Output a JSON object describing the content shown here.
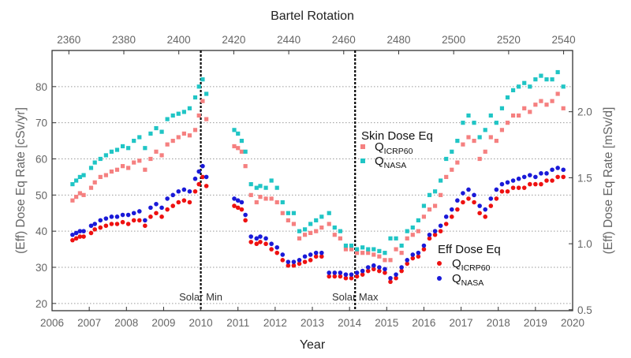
{
  "chart_data": {
    "type": "scatter",
    "title": "",
    "xlabel": "Year",
    "x2label": "Bartel Rotation",
    "ylabel": "(Eff) Dose Eq Rate [cSv/yr]",
    "y2label": "(Eff) Dose Eq Rate [mSv/d]",
    "xlim": [
      2006,
      2020
    ],
    "ylim": [
      18,
      90
    ],
    "x_ticks": [
      "2006",
      "2007",
      "2008",
      "2009",
      "2010",
      "2011",
      "2012",
      "2013",
      "2014",
      "2015",
      "2016",
      "2017",
      "2018",
      "2019",
      "2020"
    ],
    "y_ticks": [
      "20",
      "30",
      "40",
      "50",
      "60",
      "70",
      "80"
    ],
    "x2_ticks": [
      "2360",
      "2380",
      "2400",
      "2420",
      "2440",
      "2460",
      "2480",
      "2500",
      "2520",
      "2540"
    ],
    "y2_ticks": [
      "0.5",
      "1.0",
      "1.5",
      "2.0"
    ],
    "grid": "horizontal-dotted",
    "annotations": {
      "solar_min": {
        "label": "Solar Min",
        "x": 2010.0
      },
      "solar_max": {
        "label": "Solar Max",
        "x": 2014.15
      }
    },
    "legend_skin": {
      "title": "Skin Dose Eq",
      "items": [
        {
          "q": "Q",
          "sub": "ICRP60",
          "color": "#f58080"
        },
        {
          "q": "Q",
          "sub": "NASA",
          "color": "#20c5c5"
        }
      ]
    },
    "legend_eff": {
      "title": "Eff Dose Eq",
      "items": [
        {
          "q": "Q",
          "sub": "ICRP60",
          "color": "#ee1111"
        },
        {
          "q": "Q",
          "sub": "NASA",
          "color": "#1a1ad8"
        }
      ]
    },
    "series": [
      {
        "name": "Skin Dose Eq Q ICRP60",
        "color": "#f58080",
        "marker": "square",
        "x": [
          2006.55,
          2006.65,
          2006.75,
          2006.85,
          2007.05,
          2007.15,
          2007.3,
          2007.45,
          2007.6,
          2007.75,
          2007.9,
          2008.05,
          2008.2,
          2008.35,
          2008.5,
          2008.65,
          2008.8,
          2008.95,
          2009.1,
          2009.25,
          2009.4,
          2009.55,
          2009.7,
          2009.85,
          2009.95,
          2010.05,
          2010.15,
          2010.9,
          2011.0,
          2011.1,
          2011.2,
          2011.35,
          2011.5,
          2011.6,
          2011.75,
          2011.9,
          2012.05,
          2012.2,
          2012.35,
          2012.5,
          2012.65,
          2012.8,
          2012.95,
          2013.1,
          2013.25,
          2013.45,
          2013.6,
          2013.75,
          2013.9,
          2014.05,
          2014.2,
          2014.35,
          2014.5,
          2014.65,
          2014.8,
          2014.95,
          2015.1,
          2015.25,
          2015.4,
          2015.55,
          2015.7,
          2015.85,
          2016.0,
          2016.15,
          2016.3,
          2016.45,
          2016.6,
          2016.75,
          2016.9,
          2017.05,
          2017.2,
          2017.35,
          2017.5,
          2017.65,
          2017.8,
          2017.95,
          2018.1,
          2018.25,
          2018.4,
          2018.55,
          2018.7,
          2018.85,
          2019.0,
          2019.15,
          2019.3,
          2019.45,
          2019.6,
          2019.75
        ],
        "values": [
          48.5,
          49.5,
          50.5,
          50,
          52,
          53.5,
          55,
          55.5,
          56.5,
          57,
          58,
          57.5,
          59,
          59.5,
          57,
          60,
          62,
          61,
          64,
          65,
          66,
          67,
          66.5,
          68,
          72,
          76,
          71,
          63.5,
          63,
          62,
          58,
          50,
          48,
          49.5,
          49,
          49,
          48,
          45,
          43,
          42,
          38,
          39,
          39.5,
          40,
          41,
          42,
          39,
          38,
          35,
          35,
          34,
          34,
          34,
          33.5,
          33,
          32,
          32,
          35,
          34,
          38,
          39,
          40,
          44,
          46,
          47,
          50,
          55,
          57,
          59,
          64,
          66,
          65,
          60,
          62,
          66,
          65,
          68,
          70,
          72,
          72,
          74,
          73,
          75,
          76,
          75,
          76,
          78,
          74
        ]
      },
      {
        "name": "Skin Dose Eq Q NASA",
        "color": "#20c5c5",
        "marker": "square",
        "x": [
          2006.55,
          2006.65,
          2006.75,
          2006.85,
          2007.05,
          2007.15,
          2007.3,
          2007.45,
          2007.6,
          2007.75,
          2007.9,
          2008.05,
          2008.2,
          2008.35,
          2008.5,
          2008.65,
          2008.8,
          2008.95,
          2009.1,
          2009.25,
          2009.4,
          2009.55,
          2009.7,
          2009.85,
          2009.95,
          2010.05,
          2010.15,
          2010.9,
          2011.0,
          2011.1,
          2011.2,
          2011.35,
          2011.5,
          2011.6,
          2011.75,
          2011.9,
          2012.05,
          2012.2,
          2012.35,
          2012.5,
          2012.65,
          2012.8,
          2012.95,
          2013.1,
          2013.25,
          2013.45,
          2013.6,
          2013.75,
          2013.9,
          2014.05,
          2014.2,
          2014.35,
          2014.5,
          2014.65,
          2014.8,
          2014.95,
          2015.1,
          2015.25,
          2015.4,
          2015.55,
          2015.7,
          2015.85,
          2016.0,
          2016.15,
          2016.3,
          2016.45,
          2016.6,
          2016.75,
          2016.9,
          2017.05,
          2017.2,
          2017.35,
          2017.5,
          2017.65,
          2017.8,
          2017.95,
          2018.1,
          2018.25,
          2018.4,
          2018.55,
          2018.7,
          2018.85,
          2019.0,
          2019.15,
          2019.3,
          2019.45,
          2019.6,
          2019.75
        ],
        "values": [
          53,
          54,
          55,
          55.5,
          57.5,
          59,
          60,
          61,
          62,
          62.5,
          63.5,
          63,
          65,
          66,
          63,
          67,
          68.5,
          67.5,
          71,
          72,
          72.5,
          73,
          74,
          77,
          80,
          82,
          78,
          68,
          67,
          65,
          62,
          53,
          52,
          52.5,
          52,
          54,
          52,
          48,
          45,
          45,
          40,
          40.5,
          42,
          43,
          44,
          45,
          41,
          40,
          36,
          36,
          35,
          35.5,
          35,
          35,
          34.5,
          34,
          38,
          38,
          36,
          40,
          41,
          43,
          47,
          50,
          51,
          54,
          60,
          62,
          65,
          70,
          72,
          70,
          66,
          68,
          72,
          70,
          74,
          77,
          79,
          80,
          81,
          80,
          82,
          83,
          82,
          82,
          84,
          80
        ]
      },
      {
        "name": "Eff Dose Eq Q ICRP60",
        "color": "#ee1111",
        "marker": "circle",
        "x": [
          2006.55,
          2006.65,
          2006.75,
          2006.85,
          2007.05,
          2007.15,
          2007.3,
          2007.45,
          2007.6,
          2007.75,
          2007.9,
          2008.05,
          2008.2,
          2008.35,
          2008.5,
          2008.65,
          2008.8,
          2008.95,
          2009.1,
          2009.25,
          2009.4,
          2009.55,
          2009.7,
          2009.85,
          2009.95,
          2010.05,
          2010.15,
          2010.9,
          2011.0,
          2011.1,
          2011.2,
          2011.35,
          2011.5,
          2011.6,
          2011.75,
          2011.9,
          2012.05,
          2012.2,
          2012.35,
          2012.5,
          2012.65,
          2012.8,
          2012.95,
          2013.1,
          2013.25,
          2013.45,
          2013.6,
          2013.75,
          2013.9,
          2014.05,
          2014.2,
          2014.35,
          2014.5,
          2014.65,
          2014.8,
          2014.95,
          2015.1,
          2015.25,
          2015.4,
          2015.55,
          2015.7,
          2015.85,
          2016.0,
          2016.15,
          2016.3,
          2016.45,
          2016.6,
          2016.75,
          2016.9,
          2017.05,
          2017.2,
          2017.35,
          2017.5,
          2017.65,
          2017.8,
          2017.95,
          2018.1,
          2018.25,
          2018.4,
          2018.55,
          2018.7,
          2018.85,
          2019.0,
          2019.15,
          2019.3,
          2019.45,
          2019.6,
          2019.75
        ],
        "values": [
          37.5,
          38,
          38.5,
          38.5,
          39.5,
          40.5,
          41,
          41.5,
          42,
          42,
          42.5,
          42,
          43,
          43,
          41.5,
          44,
          45,
          44,
          46,
          47,
          48,
          48.5,
          48,
          51,
          53,
          55,
          52.5,
          47,
          46.5,
          46,
          43,
          37,
          36.5,
          37,
          36.5,
          35,
          34,
          32,
          30.5,
          30.5,
          31,
          31.5,
          32,
          33,
          33,
          27.5,
          27.5,
          27.5,
          27,
          27,
          27.5,
          28,
          29,
          29.5,
          29,
          28.5,
          26,
          27,
          29,
          31,
          32.5,
          33,
          35,
          38,
          39,
          40,
          42,
          44,
          46,
          48,
          49,
          48,
          45,
          44,
          47,
          49,
          51,
          51,
          52,
          52,
          52,
          53,
          53,
          53,
          54,
          54,
          55,
          55
        ]
      },
      {
        "name": "Eff Dose Eq Q NASA",
        "color": "#1a1ad8",
        "marker": "circle",
        "x": [
          2006.55,
          2006.65,
          2006.75,
          2006.85,
          2007.05,
          2007.15,
          2007.3,
          2007.45,
          2007.6,
          2007.75,
          2007.9,
          2008.05,
          2008.2,
          2008.35,
          2008.5,
          2008.65,
          2008.8,
          2008.95,
          2009.1,
          2009.25,
          2009.4,
          2009.55,
          2009.7,
          2009.85,
          2009.95,
          2010.05,
          2010.15,
          2010.9,
          2011.0,
          2011.1,
          2011.2,
          2011.35,
          2011.5,
          2011.6,
          2011.75,
          2011.9,
          2012.05,
          2012.2,
          2012.35,
          2012.5,
          2012.65,
          2012.8,
          2012.95,
          2013.1,
          2013.25,
          2013.45,
          2013.6,
          2013.75,
          2013.9,
          2014.05,
          2014.2,
          2014.35,
          2014.5,
          2014.65,
          2014.8,
          2014.95,
          2015.1,
          2015.25,
          2015.4,
          2015.55,
          2015.7,
          2015.85,
          2016.0,
          2016.15,
          2016.3,
          2016.45,
          2016.6,
          2016.75,
          2016.9,
          2017.05,
          2017.2,
          2017.35,
          2017.5,
          2017.65,
          2017.8,
          2017.95,
          2018.1,
          2018.25,
          2018.4,
          2018.55,
          2018.7,
          2018.85,
          2019.0,
          2019.15,
          2019.3,
          2019.45,
          2019.6,
          2019.75
        ],
        "values": [
          39,
          39.5,
          40,
          40,
          41.5,
          42,
          43,
          43.5,
          44,
          44,
          44.5,
          44.5,
          45,
          45.5,
          43,
          46.5,
          47.5,
          46.5,
          49,
          50,
          51,
          51.5,
          51,
          54.5,
          56.5,
          58,
          55,
          49,
          48.5,
          48,
          44.5,
          38.5,
          38,
          38.5,
          38,
          36.5,
          35.5,
          33.5,
          31.5,
          31.5,
          32,
          33,
          33.5,
          34,
          34,
          28.5,
          28.5,
          28.5,
          28,
          28,
          28.5,
          29,
          30,
          30.5,
          30,
          29.5,
          27,
          28,
          30,
          32,
          33.5,
          34,
          36,
          39,
          40,
          41.5,
          44,
          46,
          48.5,
          50.5,
          51.5,
          50,
          47,
          46,
          49,
          51.5,
          53,
          53.5,
          54,
          54.5,
          55,
          55.5,
          55,
          56,
          56,
          57,
          57.5,
          57
        ]
      }
    ]
  }
}
